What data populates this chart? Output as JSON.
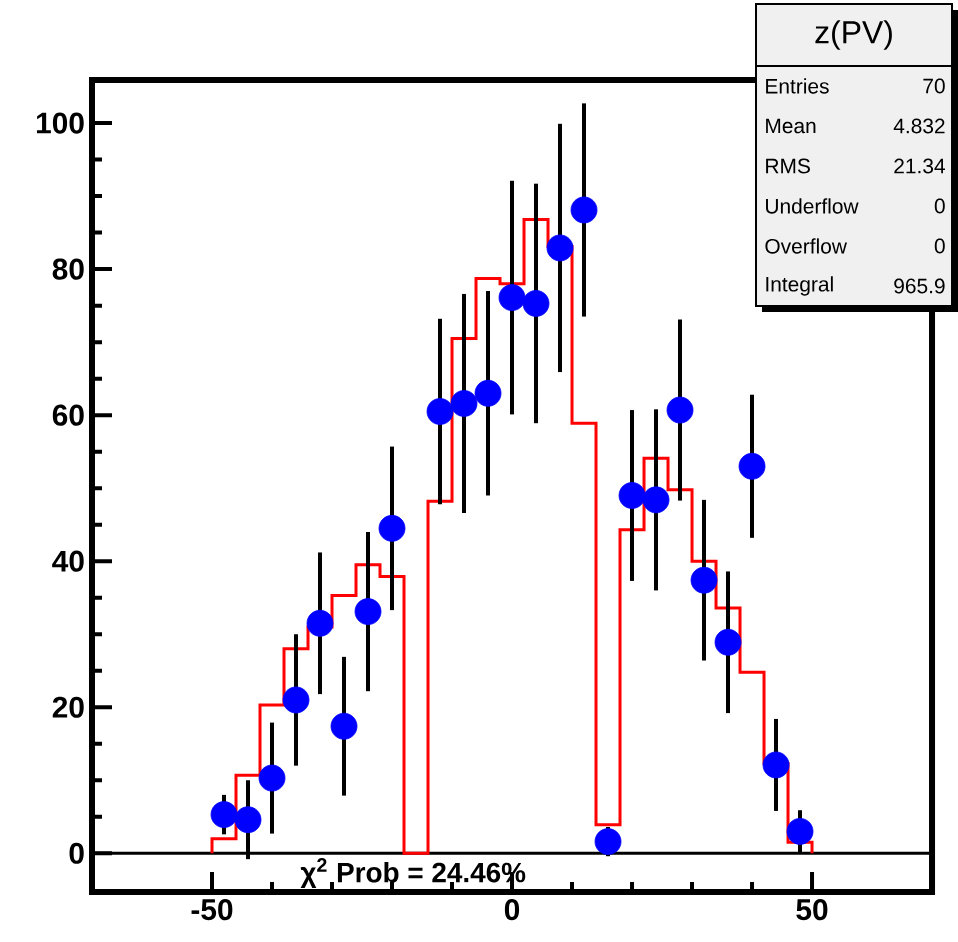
{
  "chart_data": {
    "type": "histogram",
    "title": "z(PV)",
    "bins": [
      -50,
      -46,
      -42,
      -38,
      -34,
      -30,
      -26,
      -22,
      -18,
      -14,
      -10,
      -6,
      -2,
      2,
      6,
      10,
      14,
      18,
      22,
      26,
      30,
      34,
      38,
      42,
      46,
      50
    ],
    "values": [
      2.0,
      10.7,
      20.3,
      28.0,
      31,
      35.3,
      39.5,
      37.9,
      0,
      48.2,
      70.5,
      78.7,
      78,
      86.8,
      83.1,
      58.9,
      3.9,
      44.3,
      54.1,
      49.8,
      40,
      33.6,
      24.8,
      12.3,
      1.5
    ],
    "color": "#ff0000",
    "series": [
      {
        "type": "scatter",
        "color": "#0000ff",
        "marker": "circle",
        "x": [
          -48,
          -44,
          -40,
          -36,
          -32,
          -28,
          -24,
          -20,
          -12,
          -8,
          -4,
          0,
          4,
          8,
          12,
          16,
          20,
          24,
          28,
          32,
          36,
          40,
          44,
          48
        ],
        "values": [
          5.3,
          4.6,
          10.3,
          21.0,
          31.5,
          17.4,
          33.1,
          44.5,
          60.5,
          61.6,
          63.0,
          76.1,
          75.3,
          82.9,
          88.1,
          1.6,
          49.0,
          48.4,
          60.7,
          37.4,
          28.9,
          53.0,
          12.1,
          3.0
        ],
        "errors": [
          2.7,
          5.4,
          7.6,
          9,
          9.7,
          9.5,
          10.9,
          11.2,
          12.7,
          15,
          14,
          16,
          16.4,
          17,
          14.6,
          2,
          11.7,
          12.4,
          12.4,
          11,
          9.7,
          9.8,
          6.3,
          2.9
        ]
      }
    ],
    "xlim": [
      -70,
      70
    ],
    "ylim": [
      -5.3,
      105.9
    ],
    "xticks": [
      -50,
      0,
      50
    ],
    "yticks": [
      0,
      20,
      40,
      60,
      80,
      100
    ],
    "ref_lines": [
      {
        "axis": "y",
        "value": 0,
        "color": "#000000"
      }
    ],
    "annotations": [
      "Entries",
      "70",
      "Mean",
      "4.832",
      "RMS",
      "21.34",
      "Underflow",
      "0",
      "Overflow",
      "0",
      "Integral",
      "965.9",
      "χ$^{2}$ Prob = 24.46%"
    ],
    "grid": false
  }
}
